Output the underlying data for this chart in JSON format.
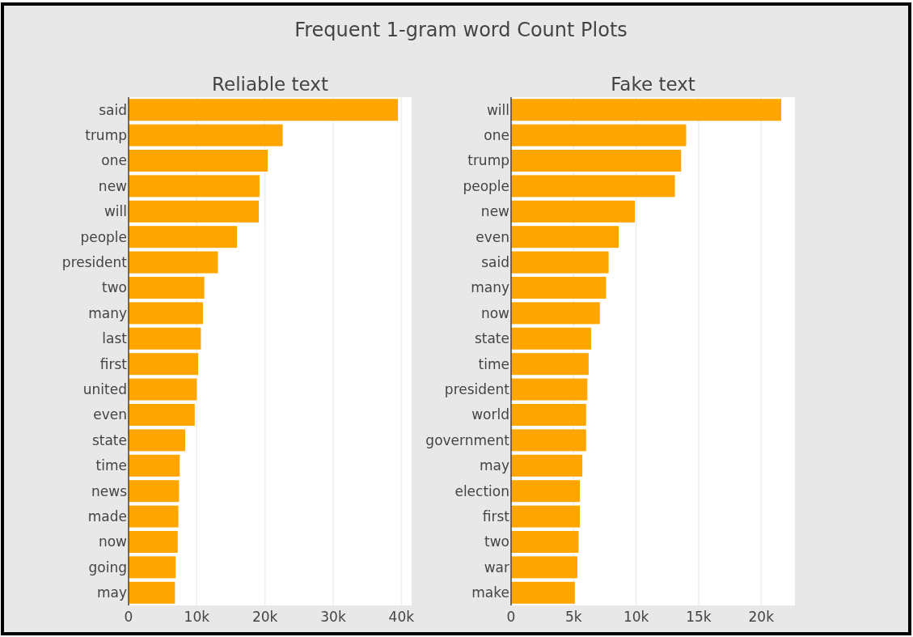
{
  "chart_data": [
    {
      "type": "bar",
      "orientation": "horizontal",
      "title": "Reliable text",
      "annotations": [
        "Frequent 1-gram word Count Plots"
      ],
      "grid": "x",
      "categories": [
        "said",
        "trump",
        "one",
        "new",
        "will",
        "people",
        "president",
        "two",
        "many",
        "last",
        "first",
        "united",
        "even",
        "state",
        "time",
        "news",
        "made",
        "now",
        "going",
        "may"
      ],
      "series": [
        {
          "color": "#ffa500",
          "values": [
            39500,
            22600,
            20400,
            19200,
            19100,
            15900,
            13100,
            11100,
            10900,
            10600,
            10200,
            10000,
            9700,
            8300,
            7500,
            7400,
            7300,
            7200,
            6900,
            6800
          ]
        }
      ],
      "xlim": [
        0,
        41500
      ],
      "xticks": [
        0,
        {
          "value": 10000,
          "label": "10k"
        },
        {
          "value": 20000,
          "label": "20k"
        },
        {
          "value": 30000,
          "label": "30k"
        },
        {
          "value": 40000,
          "label": "40k"
        }
      ]
    },
    {
      "type": "bar",
      "orientation": "horizontal",
      "title": "Fake text",
      "grid": "x",
      "categories": [
        "will",
        "one",
        "trump",
        "people",
        "new",
        "even",
        "said",
        "many",
        "now",
        "state",
        "time",
        "president",
        "world",
        "government",
        "may",
        "election",
        "first",
        "two",
        "war",
        "make"
      ],
      "series": [
        {
          "color": "#ffa500",
          "values": [
            21600,
            14000,
            13600,
            13100,
            9900,
            8600,
            7800,
            7600,
            7100,
            6400,
            6200,
            6100,
            6000,
            6000,
            5700,
            5500,
            5500,
            5400,
            5300,
            5100
          ]
        }
      ],
      "xlim": [
        0,
        22700
      ],
      "xticks": [
        0,
        {
          "value": 5000,
          "label": "5k"
        },
        {
          "value": 10000,
          "label": "10k"
        },
        {
          "value": 15000,
          "label": "15k"
        },
        {
          "value": 20000,
          "label": "20k"
        }
      ]
    }
  ]
}
